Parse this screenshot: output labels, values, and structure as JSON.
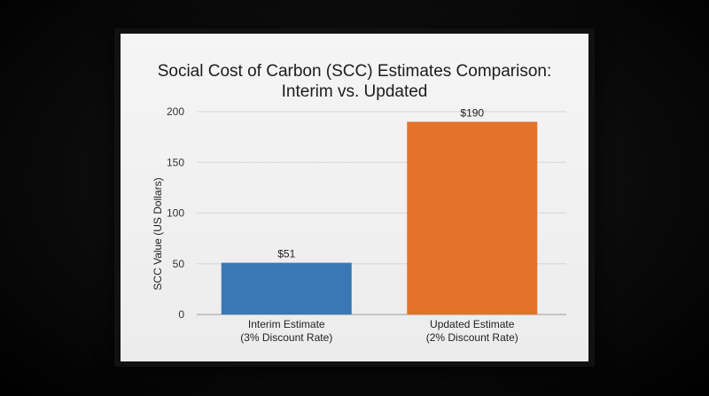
{
  "chart_data": {
    "type": "bar",
    "title_lines": [
      "Social Cost of Carbon (SCC) Estimates Comparison:",
      "Interim vs. Updated"
    ],
    "ylabel": "SCC Value (US Dollars)",
    "xlabel": "",
    "ylim": [
      0,
      200
    ],
    "yticks": [
      0,
      50,
      100,
      150,
      200
    ],
    "grid": true,
    "categories": [
      [
        "Interim Estimate",
        "(3% Discount Rate)"
      ],
      [
        "Updated Estimate",
        "(2% Discount Rate)"
      ]
    ],
    "values": [
      51,
      190
    ],
    "data_labels": [
      "$51",
      "$190"
    ],
    "colors": [
      "#3a78b5",
      "#e4722b"
    ]
  }
}
